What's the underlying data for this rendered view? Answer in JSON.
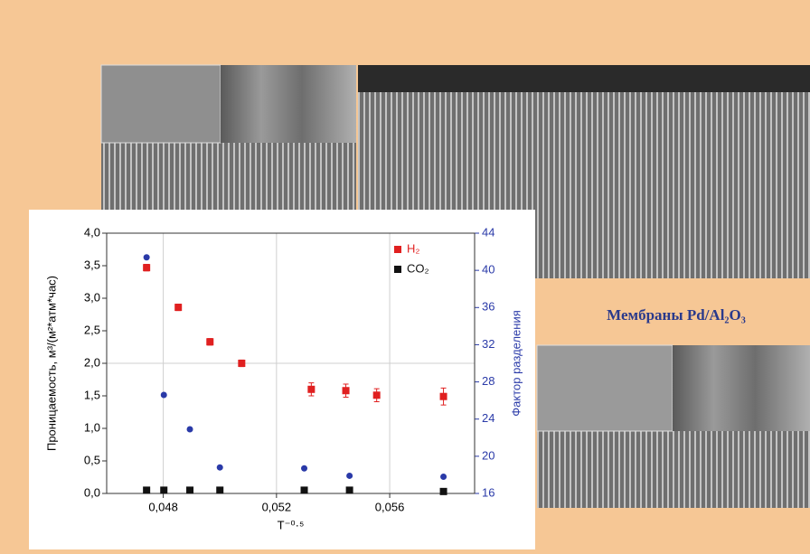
{
  "caption": "Мембраны Pd/Al₂O₃",
  "chart_data": {
    "type": "scatter",
    "x_label": "T⁻⁰·⁵",
    "y_label": "Проницаемость, м³/(м²*атм*час)",
    "y2_label": "Фактор разделения",
    "xlim": [
      0.046,
      0.059
    ],
    "xticks": [
      {
        "value": 0.048,
        "label": "0,048"
      },
      {
        "value": 0.052,
        "label": "0,052"
      },
      {
        "value": 0.056,
        "label": "0,056"
      }
    ],
    "ylim": [
      0,
      4
    ],
    "yticks": [
      {
        "value": 0,
        "label": "0,0"
      },
      {
        "value": 0.5,
        "label": "0,5"
      },
      {
        "value": 1,
        "label": "1,0"
      },
      {
        "value": 1.5,
        "label": "1,5"
      },
      {
        "value": 2,
        "label": "2,0"
      },
      {
        "value": 2.5,
        "label": "2,5"
      },
      {
        "value": 3,
        "label": "3,0"
      },
      {
        "value": 3.5,
        "label": "3,5"
      },
      {
        "value": 4,
        "label": "4,0"
      }
    ],
    "y2lim": [
      16,
      44
    ],
    "y2ticks": [
      16,
      20,
      24,
      28,
      32,
      36,
      40,
      44
    ],
    "grid": true,
    "series": [
      {
        "name": "H₂",
        "color": "#e02020",
        "marker": "square",
        "x": [
          0.04741,
          0.04853,
          0.04965,
          0.05077,
          0.05323,
          0.05445,
          0.05554,
          0.0579
        ],
        "values": [
          3.47,
          2.86,
          2.33,
          2.0,
          1.6,
          1.58,
          1.51,
          1.49
        ],
        "errors": [
          0.05,
          0.05,
          0.05,
          0.05,
          0.1,
          0.1,
          0.1,
          0.13
        ]
      },
      {
        "name": "CO₂",
        "color": "#111111",
        "marker": "square",
        "x": [
          0.04741,
          0.04802,
          0.04894,
          0.05,
          0.05298,
          0.05458,
          0.0579
        ],
        "values": [
          0.05,
          0.05,
          0.05,
          0.05,
          0.05,
          0.05,
          0.03
        ]
      },
      {
        "color": "#2a3aa8",
        "marker": "circle",
        "axis": "y2",
        "x": [
          0.04741,
          0.04802,
          0.04894,
          0.05,
          0.05298,
          0.05458,
          0.0579
        ],
        "values": [
          41.4,
          26.6,
          22.9,
          18.8,
          18.7,
          17.9,
          17.8
        ]
      }
    ]
  }
}
